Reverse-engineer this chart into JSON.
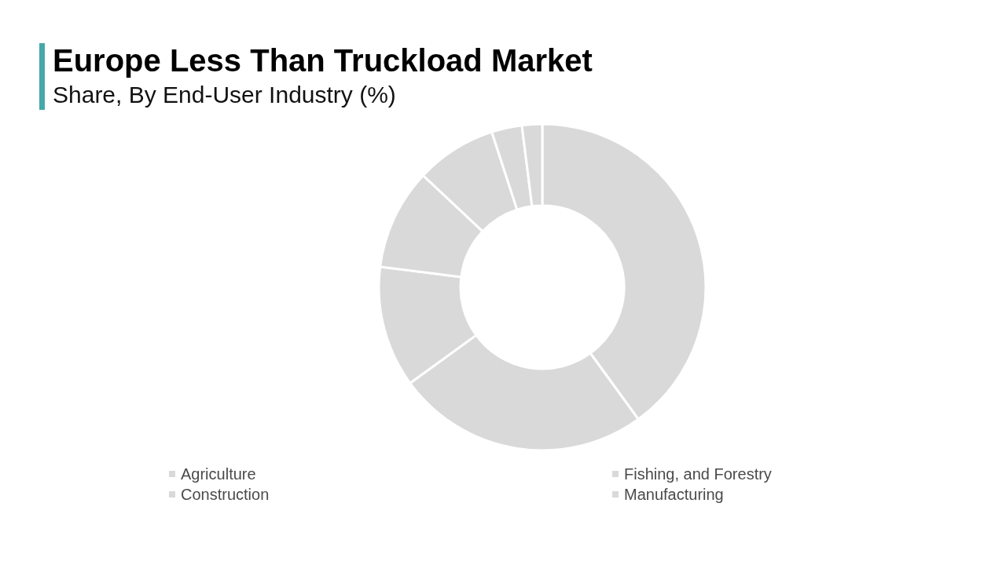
{
  "chart_data": {
    "type": "donut",
    "title": "Europe Less Than Truckload Market",
    "subtitle": "Share, By End-User Industry (%)",
    "categories": [
      "Agriculture",
      "Construction",
      "Fishing, and Forestry",
      "Manufacturing",
      null,
      null,
      null
    ],
    "values": [
      40,
      25,
      12,
      10,
      8,
      3,
      2
    ],
    "colors": [
      "#d9d9d9",
      "#d9d9d9",
      "#d9d9d9",
      "#d9d9d9",
      "#d9d9d9",
      "#d9d9d9",
      "#d9d9d9"
    ],
    "legend": "bottom"
  }
}
